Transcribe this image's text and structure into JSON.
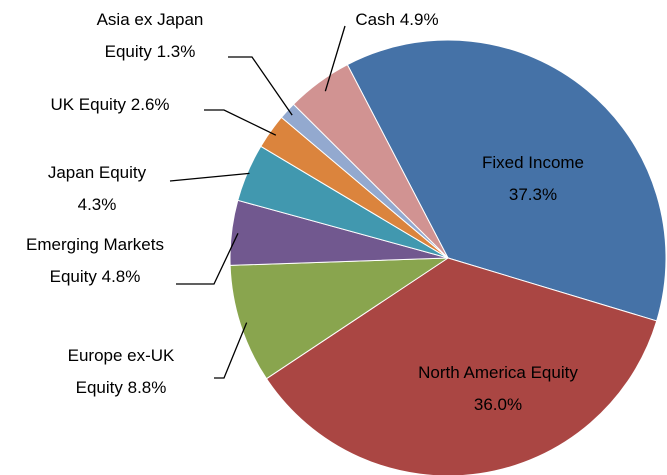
{
  "chart_data": {
    "type": "pie",
    "categories": [
      "Fixed Income",
      "North America Equity",
      "Europe ex-UK Equity",
      "Emerging Markets Equity",
      "Japan Equity",
      "UK Equity",
      "Asia ex Japan Equity",
      "Cash"
    ],
    "values": [
      37.3,
      36.0,
      8.8,
      4.8,
      4.3,
      2.6,
      1.3,
      4.9
    ],
    "value_labels": [
      "37.3%",
      "36.0%",
      "8.8%",
      "4.8%",
      "4.3%",
      "2.6%",
      "1.3%",
      "4.9%"
    ],
    "colors": [
      "#4572a7",
      "#aa4643",
      "#89a54e",
      "#71588f",
      "#4198af",
      "#db843d",
      "#93a9cf",
      "#d19392"
    ]
  }
}
